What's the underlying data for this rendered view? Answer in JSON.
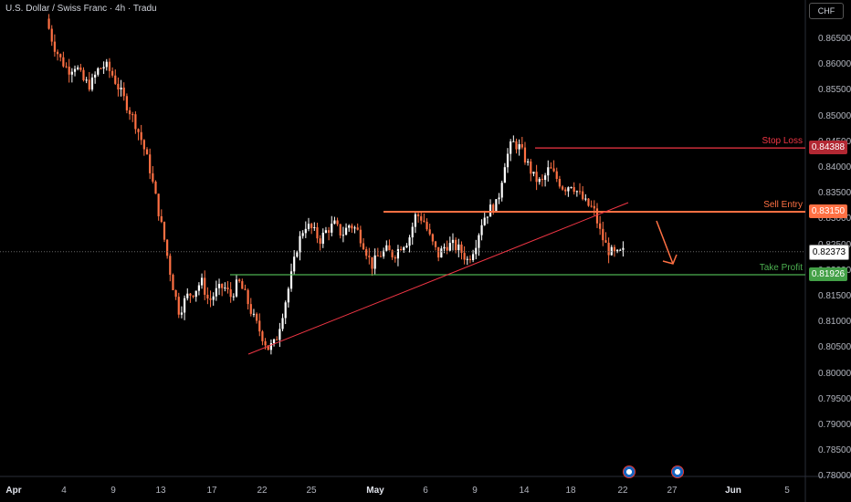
{
  "header": {
    "title": "U.S. Dollar / Swiss Franc · 4h · Tradu",
    "currency": "CHF"
  },
  "y_axis": {
    "ticks": [
      "0.86500",
      "0.86000",
      "0.85500",
      "0.85000",
      "0.84500",
      "0.84000",
      "0.83500",
      "0.83000",
      "0.82500",
      "0.82000",
      "0.81500",
      "0.81000",
      "0.80500",
      "0.80000",
      "0.79500",
      "0.79000",
      "0.78500",
      "0.78000"
    ]
  },
  "x_axis": {
    "labels": [
      {
        "text": "Apr",
        "bold": true
      },
      {
        "text": "4"
      },
      {
        "text": "9"
      },
      {
        "text": "13"
      },
      {
        "text": "17"
      },
      {
        "text": "22"
      },
      {
        "text": "25"
      },
      {
        "text": "May",
        "bold": true
      },
      {
        "text": "6"
      },
      {
        "text": "9"
      },
      {
        "text": "14"
      },
      {
        "text": "18"
      },
      {
        "text": "22"
      },
      {
        "text": "27"
      },
      {
        "text": "Jun",
        "bold": true
      },
      {
        "text": "5"
      }
    ]
  },
  "levels": {
    "stop_loss": {
      "label": "Stop Loss",
      "value": "0.84388",
      "color": "#f23645"
    },
    "sell_entry": {
      "label": "Sell Entry",
      "value": "0.83150",
      "color": "#ff7043"
    },
    "take_profit": {
      "label": "Take Profit",
      "value": "0.81926",
      "color": "#4caf50"
    },
    "current": {
      "value": "0.82373"
    }
  },
  "colors": {
    "up": "#ffffff",
    "down": "#ff7043",
    "trendline": "#f23645",
    "arrow": "#ff7043",
    "grid": "#1a1a1a"
  },
  "events": [
    {
      "icon": "us-flag-icon"
    },
    {
      "icon": "us-flag-icon"
    }
  ],
  "chart_data": {
    "type": "candlestick",
    "title": "U.S. Dollar / Swiss Franc · 4h · Tradu",
    "ylim": [
      0.78,
      0.869
    ],
    "x_range": [
      "Apr",
      "Jun 5"
    ],
    "horizontal_levels": [
      {
        "name": "Stop Loss",
        "value": 0.84388
      },
      {
        "name": "Sell Entry",
        "value": 0.8315
      },
      {
        "name": "Take Profit",
        "value": 0.81926
      }
    ],
    "last_price": 0.82373,
    "trendline": {
      "from": [
        "Apr 19",
        0.8047
      ],
      "to": [
        "May 22",
        0.8325
      ]
    },
    "path_close": [
      0.869,
      0.864,
      0.861,
      0.859,
      0.86,
      0.857,
      0.856,
      0.859,
      0.86,
      0.858,
      0.855,
      0.852,
      0.849,
      0.845,
      0.84,
      0.833,
      0.826,
      0.818,
      0.812,
      0.815,
      0.816,
      0.818,
      0.814,
      0.816,
      0.817,
      0.815,
      0.818,
      0.815,
      0.811,
      0.808,
      0.805,
      0.806,
      0.812,
      0.818,
      0.825,
      0.829,
      0.828,
      0.826,
      0.828,
      0.829,
      0.827,
      0.829,
      0.828,
      0.825,
      0.821,
      0.823,
      0.824,
      0.823,
      0.825,
      0.826,
      0.831,
      0.83,
      0.826,
      0.823,
      0.825,
      0.825,
      0.824,
      0.822,
      0.825,
      0.83,
      0.832,
      0.833,
      0.841,
      0.845,
      0.844,
      0.841,
      0.838,
      0.837,
      0.84,
      0.838,
      0.836,
      0.837,
      0.835,
      0.833,
      0.832,
      0.827,
      0.824,
      0.823,
      0.8237
    ]
  }
}
